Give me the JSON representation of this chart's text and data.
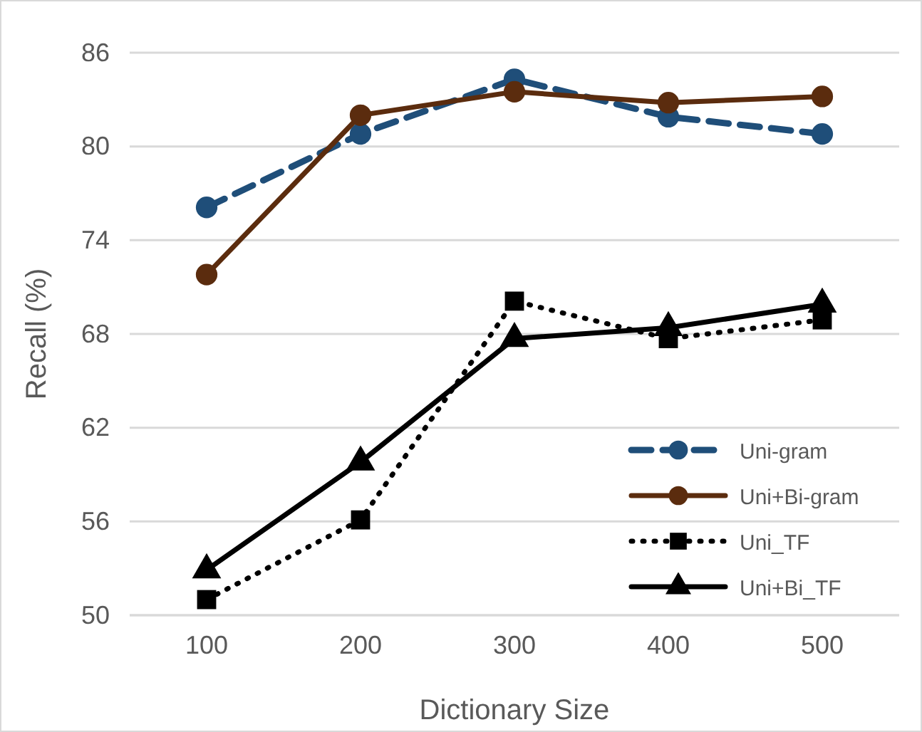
{
  "chart_data": {
    "type": "line",
    "xlabel": "Dictionary Size",
    "ylabel": "Recall (%)",
    "categories": [
      "100",
      "200",
      "300",
      "400",
      "500"
    ],
    "ylim": [
      50,
      86
    ],
    "yticks": [
      50,
      56,
      62,
      68,
      74,
      80,
      86
    ],
    "grid": "y",
    "legend": "bottom right",
    "series": [
      {
        "name": "Uni-gram",
        "color": "#1f4e79",
        "values": [
          76.1,
          80.8,
          84.3,
          81.9,
          80.8
        ],
        "marker": "circle",
        "line_style": "dashed"
      },
      {
        "name": "Uni+Bi-gram",
        "color": "#5b2c0e",
        "values": [
          71.8,
          82.0,
          83.5,
          82.8,
          83.2
        ],
        "marker": "circle",
        "line_style": "solid"
      },
      {
        "name": "Uni_TF",
        "color": "#000000",
        "values": [
          51.0,
          56.1,
          70.1,
          67.7,
          68.9
        ],
        "marker": "square",
        "line_style": "dotted"
      },
      {
        "name": "Uni+Bi_TF",
        "color": "#000000",
        "values": [
          52.9,
          59.8,
          67.7,
          68.4,
          69.9
        ],
        "marker": "triangle",
        "line_style": "solid"
      }
    ]
  }
}
